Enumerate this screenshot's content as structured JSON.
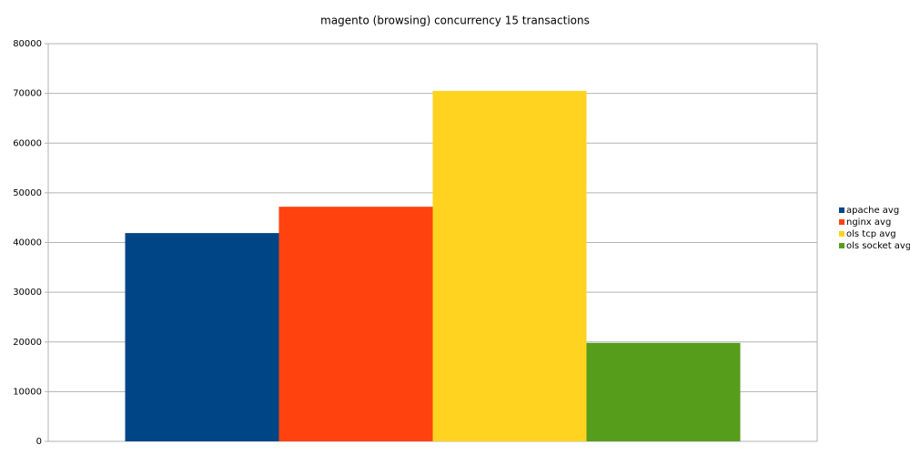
{
  "chart_data": {
    "type": "bar",
    "title": "magento (browsing) concurrency 15 transactions",
    "categories": [
      null
    ],
    "series": [
      {
        "name": "apache avg",
        "color": "#004586",
        "values": [
          41900
        ]
      },
      {
        "name": "nginx avg",
        "color": "#ff420e",
        "values": [
          47200
        ]
      },
      {
        "name": "ols tcp avg",
        "color": "#ffd320",
        "values": [
          70500
        ]
      },
      {
        "name": "ols socket avg",
        "color": "#579d1c",
        "values": [
          19800
        ]
      }
    ],
    "ylim": [
      0,
      80000
    ],
    "yticks": [
      0,
      10000,
      20000,
      30000,
      40000,
      50000,
      60000,
      70000,
      80000
    ],
    "grid": true,
    "legend": "right"
  }
}
